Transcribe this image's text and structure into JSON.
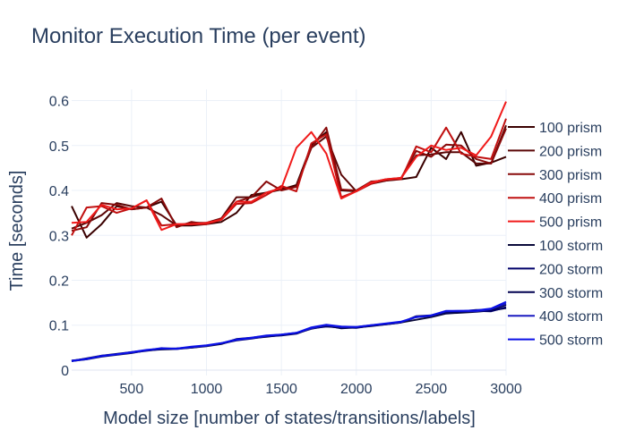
{
  "chart_data": {
    "type": "line",
    "title": "Monitor Execution Time (per event)",
    "xlabel": "Model size [number of states/transitions/labels]",
    "ylabel": "Time [seconds]",
    "xlim": [
      100,
      3000
    ],
    "ylim": [
      -0.012,
      0.625
    ],
    "xticks": [
      500,
      1000,
      1500,
      2000,
      2500,
      3000
    ],
    "yticks": [
      0,
      0.1,
      0.2,
      0.3,
      0.4,
      0.5,
      0.6
    ],
    "grid": true,
    "legend_position": "right",
    "x": [
      100,
      200,
      300,
      400,
      500,
      600,
      700,
      800,
      900,
      1000,
      1100,
      1200,
      1300,
      1400,
      1500,
      1600,
      1700,
      1800,
      1900,
      2000,
      2100,
      2200,
      2300,
      2400,
      2500,
      2600,
      2700,
      2800,
      2900,
      3000
    ],
    "series": [
      {
        "name": "100 prism",
        "color": "#3a0000",
        "values": [
          0.365,
          0.295,
          0.325,
          0.365,
          0.358,
          0.362,
          0.375,
          0.322,
          0.322,
          0.325,
          0.33,
          0.35,
          0.39,
          0.395,
          0.402,
          0.412,
          0.5,
          0.53,
          0.4,
          0.398,
          0.415,
          0.422,
          0.425,
          0.43,
          0.495,
          0.47,
          0.53,
          0.455,
          0.462,
          0.475
        ]
      },
      {
        "name": "200 prism",
        "color": "#5a0606",
        "values": [
          0.315,
          0.328,
          0.345,
          0.372,
          0.365,
          0.362,
          0.345,
          0.322,
          0.328,
          0.328,
          0.338,
          0.385,
          0.385,
          0.395,
          0.405,
          0.408,
          0.495,
          0.52,
          0.435,
          0.398,
          0.418,
          0.425,
          0.428,
          0.478,
          0.48,
          0.485,
          0.485,
          0.46,
          0.46,
          0.545
        ]
      },
      {
        "name": "300 prism",
        "color": "#880a0a",
        "values": [
          0.31,
          0.318,
          0.372,
          0.368,
          0.358,
          0.362,
          0.382,
          0.318,
          0.33,
          0.325,
          0.338,
          0.375,
          0.385,
          0.42,
          0.4,
          0.408,
          0.495,
          0.54,
          0.402,
          0.4,
          0.42,
          0.422,
          0.428,
          0.488,
          0.475,
          0.502,
          0.5,
          0.47,
          0.46,
          0.538
        ]
      },
      {
        "name": "400 prism",
        "color": "#c01010",
        "values": [
          0.3,
          0.362,
          0.365,
          0.35,
          0.36,
          0.378,
          0.322,
          0.325,
          0.325,
          0.325,
          0.335,
          0.37,
          0.372,
          0.39,
          0.41,
          0.398,
          0.505,
          0.525,
          0.385,
          0.398,
          0.415,
          0.425,
          0.425,
          0.498,
          0.485,
          0.54,
          0.482,
          0.475,
          0.47,
          0.56
        ]
      },
      {
        "name": "500 prism",
        "color": "#f01a1a",
        "values": [
          0.328,
          0.33,
          0.368,
          0.358,
          0.36,
          0.378,
          0.312,
          0.325,
          0.325,
          0.328,
          0.335,
          0.375,
          0.375,
          0.395,
          0.405,
          0.495,
          0.53,
          0.482,
          0.382,
          0.398,
          0.418,
          0.425,
          0.428,
          0.475,
          0.5,
          0.49,
          0.495,
          0.478,
          0.52,
          0.598
        ]
      },
      {
        "name": "100 storm",
        "color": "#0a0a3a",
        "values": [
          0.02,
          0.024,
          0.03,
          0.034,
          0.038,
          0.044,
          0.046,
          0.047,
          0.05,
          0.053,
          0.058,
          0.068,
          0.071,
          0.074,
          0.078,
          0.082,
          0.092,
          0.098,
          0.094,
          0.095,
          0.098,
          0.102,
          0.106,
          0.112,
          0.118,
          0.126,
          0.128,
          0.13,
          0.133,
          0.138
        ]
      },
      {
        "name": "200 storm",
        "color": "#00006a",
        "values": [
          0.021,
          0.025,
          0.031,
          0.035,
          0.039,
          0.043,
          0.047,
          0.048,
          0.051,
          0.054,
          0.059,
          0.066,
          0.07,
          0.075,
          0.077,
          0.081,
          0.093,
          0.097,
          0.095,
          0.094,
          0.099,
          0.103,
          0.107,
          0.118,
          0.121,
          0.128,
          0.13,
          0.132,
          0.131,
          0.14
        ]
      },
      {
        "name": "300 storm",
        "color": "#000050",
        "values": [
          0.02,
          0.026,
          0.032,
          0.036,
          0.04,
          0.044,
          0.048,
          0.048,
          0.05,
          0.054,
          0.059,
          0.069,
          0.072,
          0.076,
          0.078,
          0.082,
          0.094,
          0.099,
          0.093,
          0.095,
          0.099,
          0.102,
          0.106,
          0.12,
          0.122,
          0.13,
          0.131,
          0.134,
          0.134,
          0.145
        ]
      },
      {
        "name": "400 storm",
        "color": "#1a1ac0",
        "values": [
          0.021,
          0.024,
          0.032,
          0.035,
          0.039,
          0.044,
          0.049,
          0.047,
          0.051,
          0.054,
          0.06,
          0.067,
          0.071,
          0.076,
          0.079,
          0.083,
          0.093,
          0.1,
          0.096,
          0.096,
          0.1,
          0.103,
          0.107,
          0.119,
          0.121,
          0.131,
          0.132,
          0.131,
          0.136,
          0.148
        ]
      },
      {
        "name": "500 storm",
        "color": "#0a10e6",
        "values": [
          0.02,
          0.025,
          0.031,
          0.035,
          0.04,
          0.045,
          0.048,
          0.048,
          0.052,
          0.055,
          0.06,
          0.068,
          0.072,
          0.077,
          0.079,
          0.083,
          0.095,
          0.101,
          0.097,
          0.096,
          0.1,
          0.104,
          0.108,
          0.118,
          0.122,
          0.132,
          0.132,
          0.133,
          0.137,
          0.152
        ]
      }
    ]
  }
}
